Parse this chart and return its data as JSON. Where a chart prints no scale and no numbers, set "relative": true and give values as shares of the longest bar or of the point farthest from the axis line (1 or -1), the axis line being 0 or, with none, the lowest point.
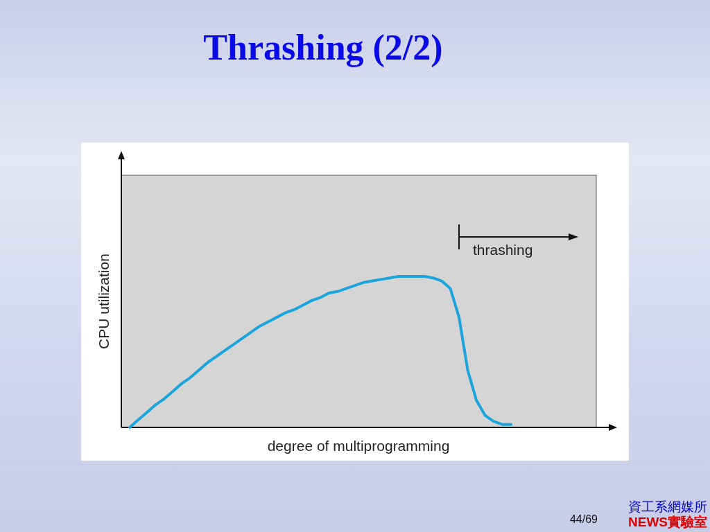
{
  "chart_data": {
    "type": "line",
    "title": "Thrashing (2/2)",
    "xlabel": "degree of multiprogramming",
    "ylabel": "CPU utilization",
    "relative": true,
    "marker": "none",
    "line_style": "solid",
    "categories": [
      null,
      null,
      null,
      null,
      null,
      null,
      null,
      null,
      null,
      null,
      null,
      null,
      null,
      null,
      null,
      null,
      null,
      null,
      null,
      null,
      null,
      null,
      null,
      null,
      null,
      null,
      null,
      null,
      null,
      null,
      null,
      null,
      null,
      null,
      null,
      null,
      null,
      null,
      null,
      null,
      null,
      null,
      null,
      null,
      null
    ],
    "series": [
      {
        "color": "#1ca5dc",
        "values": [
          0,
          0.05,
          0.1,
          0.15,
          0.19,
          0.24,
          0.29,
          0.33,
          0.38,
          0.43,
          0.47,
          0.51,
          0.55,
          0.59,
          0.63,
          0.67,
          0.7,
          0.73,
          0.76,
          0.78,
          0.81,
          0.84,
          0.86,
          0.89,
          0.9,
          0.92,
          0.94,
          0.96,
          0.97,
          0.98,
          0.99,
          1.0,
          1.0,
          1.0,
          1.0,
          0.99,
          0.97,
          0.92,
          0.73,
          0.38,
          0.18,
          0.08,
          0.04,
          0.02,
          0.02
        ]
      }
    ],
    "annotations": [
      "thrashing",
      "44/69",
      "資工系網媒所",
      "NEWS實驗室"
    ]
  }
}
